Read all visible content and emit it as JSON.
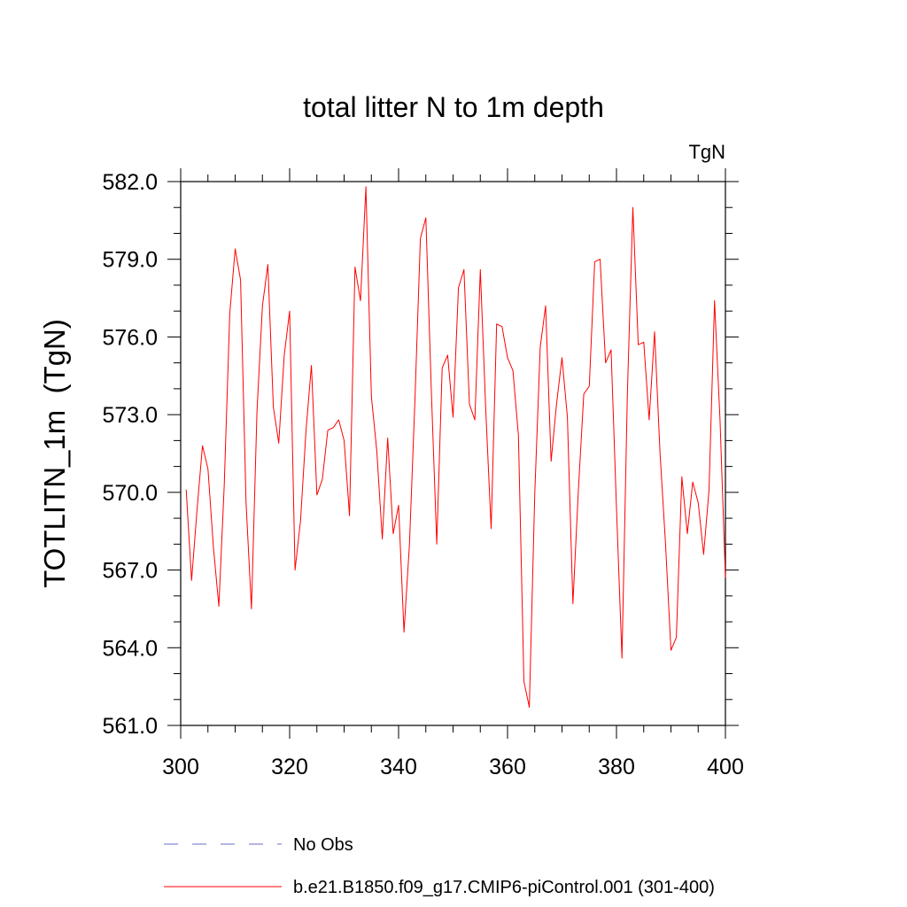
{
  "chart_data": {
    "type": "line",
    "title": "total litter N to 1m depth",
    "units_label": "TgN",
    "ylabel": "TOTLITN_1m  (TgN)",
    "xlabel": "",
    "xlim": [
      300,
      400
    ],
    "ylim": [
      561,
      582
    ],
    "x_ticks": [
      300,
      320,
      340,
      360,
      380,
      400
    ],
    "y_ticks": [
      561,
      564,
      567,
      570,
      573,
      576,
      579,
      582
    ],
    "x_tick_labels": [
      "300",
      "320",
      "340",
      "360",
      "380",
      "400"
    ],
    "y_tick_labels": [
      "561.0",
      "564.0",
      "567.0",
      "570.0",
      "573.0",
      "576.0",
      "579.0",
      "582.0"
    ],
    "grid": false,
    "series": [
      {
        "name": "b.e21.B1850.f09_g17.CMIP6-piControl.001 (301-400)",
        "color": "#ff0000",
        "style": "solid",
        "x": [
          301,
          302,
          303,
          304,
          305,
          306,
          307,
          308,
          309,
          310,
          311,
          312,
          313,
          314,
          315,
          316,
          317,
          318,
          319,
          320,
          321,
          322,
          323,
          324,
          325,
          326,
          327,
          328,
          329,
          330,
          331,
          332,
          333,
          334,
          335,
          336,
          337,
          338,
          339,
          340,
          341,
          342,
          343,
          344,
          345,
          346,
          347,
          348,
          349,
          350,
          351,
          352,
          353,
          354,
          355,
          356,
          357,
          358,
          359,
          360,
          361,
          362,
          363,
          364,
          365,
          366,
          367,
          368,
          369,
          370,
          371,
          372,
          373,
          374,
          375,
          376,
          377,
          378,
          379,
          380,
          381,
          382,
          383,
          384,
          385,
          386,
          387,
          388,
          389,
          390,
          391,
          392,
          393,
          394,
          395,
          396,
          397,
          398,
          399,
          400
        ],
        "values": [
          570.1,
          566.6,
          569.3,
          571.8,
          570.9,
          567.9,
          565.6,
          570.3,
          576.9,
          579.4,
          578.2,
          569.6,
          565.5,
          573.1,
          577.2,
          578.8,
          573.3,
          571.9,
          575.3,
          577.0,
          567.0,
          568.9,
          572.4,
          574.9,
          569.9,
          570.5,
          572.4,
          572.5,
          572.8,
          572.0,
          569.1,
          578.7,
          577.4,
          581.8,
          573.7,
          571.6,
          568.2,
          572.1,
          568.4,
          569.5,
          564.6,
          568.0,
          573.5,
          579.8,
          580.6,
          574.0,
          568.0,
          574.8,
          575.3,
          572.9,
          577.9,
          578.6,
          573.4,
          572.8,
          578.6,
          573.2,
          568.6,
          576.5,
          576.4,
          575.2,
          574.7,
          572.2,
          562.7,
          561.7,
          570.0,
          575.6,
          577.2,
          571.2,
          573.4,
          575.2,
          572.9,
          565.7,
          570.1,
          573.8,
          574.1,
          578.9,
          579.0,
          575.0,
          575.5,
          569.4,
          563.6,
          573.8,
          581.0,
          575.7,
          575.8,
          572.8,
          576.2,
          571.5,
          568.0,
          563.9,
          564.4,
          570.6,
          568.4,
          570.4,
          569.6,
          567.6,
          570.1,
          577.4,
          572.8,
          566.7
        ]
      }
    ],
    "legend": {
      "placement": "bottom",
      "entries": [
        {
          "label": "No Obs",
          "color": "#6a6acd",
          "style": "dashed"
        },
        {
          "label": "b.e21.B1850.f09_g17.CMIP6-piControl.001 (301-400)",
          "color": "#ff0000",
          "style": "solid"
        }
      ]
    }
  }
}
